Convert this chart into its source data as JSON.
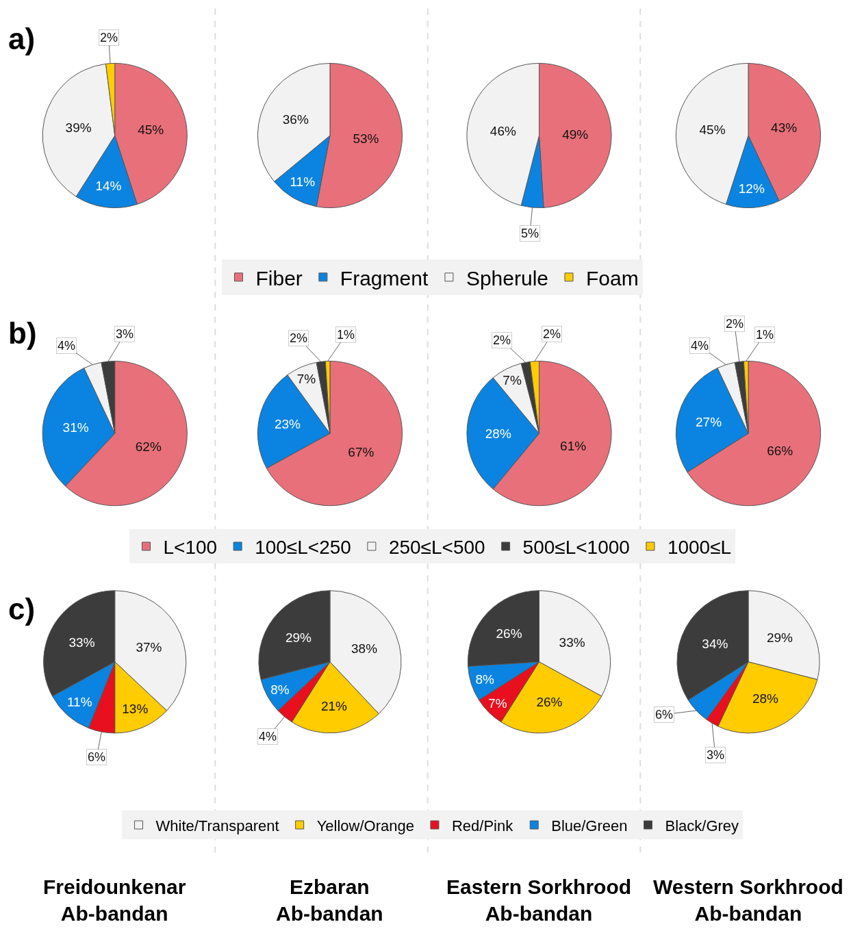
{
  "chart_data": [
    {
      "type": "pie",
      "title": "a)",
      "categories": [
        "Fiber",
        "Fragment",
        "Spherule",
        "Foam"
      ],
      "values": [
        45,
        14,
        39,
        2
      ],
      "value_labels": [
        "45%",
        "14%",
        "39%",
        "2%"
      ],
      "colors": [
        "#e8707a",
        "#0a84e0",
        "#f2f2f2",
        "#ffcc00"
      ],
      "legend": "bottom"
    },
    {
      "type": "pie",
      "categories": [
        null,
        null,
        null
      ],
      "values": [
        53,
        11,
        36
      ],
      "value_labels": [
        "53%",
        "11%",
        "36%"
      ],
      "colors": [
        "#e8707a",
        "#0a84e0",
        "#f2f2f2"
      ]
    },
    {
      "type": "pie",
      "categories": [
        null,
        null,
        null
      ],
      "values": [
        49,
        5,
        46
      ],
      "value_labels": [
        "49%",
        "5%",
        "46%"
      ],
      "colors": [
        "#e8707a",
        "#0a84e0",
        "#f2f2f2"
      ]
    },
    {
      "type": "pie",
      "categories": [
        null,
        null,
        null
      ],
      "values": [
        43,
        12,
        45
      ],
      "value_labels": [
        "43%",
        "12%",
        "45%"
      ],
      "colors": [
        "#e8707a",
        "#0a84e0",
        "#f2f2f2"
      ]
    },
    {
      "type": "pie",
      "title": "b)",
      "categories": [
        null,
        null,
        null,
        null
      ],
      "values": [
        62,
        31,
        4,
        3
      ],
      "value_labels": [
        "62%",
        "31%",
        "4%",
        "3%"
      ],
      "colors": [
        "#e8707a",
        "#0a84e0",
        "#f2f2f2",
        "#3c3c3c"
      ]
    },
    {
      "type": "pie",
      "categories": [
        "L<100",
        "100≤L<250",
        "250≤L<500",
        "500≤L<1000",
        "1000≤L"
      ],
      "values": [
        67,
        23,
        7,
        2,
        1
      ],
      "value_labels": [
        "67%",
        "23%",
        "7%",
        "2%",
        "1%"
      ],
      "colors": [
        "#e8707a",
        "#0a84e0",
        "#f2f2f2",
        "#3c3c3c",
        "#ffcc00"
      ],
      "legend": "bottom"
    },
    {
      "type": "pie",
      "categories": [
        null,
        null,
        null,
        null,
        null
      ],
      "values": [
        61,
        28,
        7,
        2,
        2
      ],
      "value_labels": [
        "61%",
        "28%",
        "7%",
        "2%",
        "2%"
      ],
      "colors": [
        "#e8707a",
        "#0a84e0",
        "#f2f2f2",
        "#3c3c3c",
        "#ffcc00"
      ]
    },
    {
      "type": "pie",
      "categories": [
        null,
        null,
        null,
        null,
        null
      ],
      "values": [
        66,
        27,
        4,
        2,
        1
      ],
      "value_labels": [
        "66%",
        "27%",
        "4%",
        "2%",
        "1%"
      ],
      "colors": [
        "#e8707a",
        "#0a84e0",
        "#f2f2f2",
        "#3c3c3c",
        "#ffcc00"
      ]
    },
    {
      "type": "pie",
      "title": "c)",
      "xlabel": "Freidounkenar\nAb-bandan",
      "categories": [
        "White/Transparent",
        "Yellow/Orange",
        "Red/Pink",
        "Blue/Green",
        "Black/Grey"
      ],
      "values": [
        37,
        13,
        6,
        11,
        33
      ],
      "value_labels": [
        "37%",
        "13%",
        "6%",
        "11%",
        "33%"
      ],
      "colors": [
        "#f2f2f2",
        "#ffcc00",
        "#e8101e",
        "#0a84e0",
        "#3c3c3c"
      ],
      "legend": "bottom"
    },
    {
      "type": "pie",
      "xlabel": "Ezbaran\nAb-bandan",
      "categories": [
        null,
        null,
        null,
        null,
        null
      ],
      "values": [
        38,
        21,
        4,
        8,
        29
      ],
      "value_labels": [
        "38%",
        "21%",
        "4%",
        "8%",
        "29%"
      ],
      "colors": [
        "#f2f2f2",
        "#ffcc00",
        "#e8101e",
        "#0a84e0",
        "#3c3c3c"
      ]
    },
    {
      "type": "pie",
      "xlabel": "Eastern Sorkhrood\nAb-bandan",
      "categories": [
        null,
        null,
        null,
        null,
        null
      ],
      "values": [
        33,
        26,
        7,
        8,
        26
      ],
      "value_labels": [
        "33%",
        "26%",
        "7%",
        "8%",
        "26%"
      ],
      "colors": [
        "#f2f2f2",
        "#ffcc00",
        "#e8101e",
        "#0a84e0",
        "#3c3c3c"
      ]
    },
    {
      "type": "pie",
      "xlabel": "Western Sorkhrood\nAb-bandan",
      "categories": [
        null,
        null,
        null,
        null,
        null
      ],
      "values": [
        29,
        28,
        3,
        6,
        34
      ],
      "value_labels": [
        "29%",
        "28%",
        "3%",
        "6%",
        "34%"
      ],
      "colors": [
        "#f2f2f2",
        "#ffcc00",
        "#e8101e",
        "#0a84e0",
        "#3c3c3c"
      ]
    }
  ]
}
